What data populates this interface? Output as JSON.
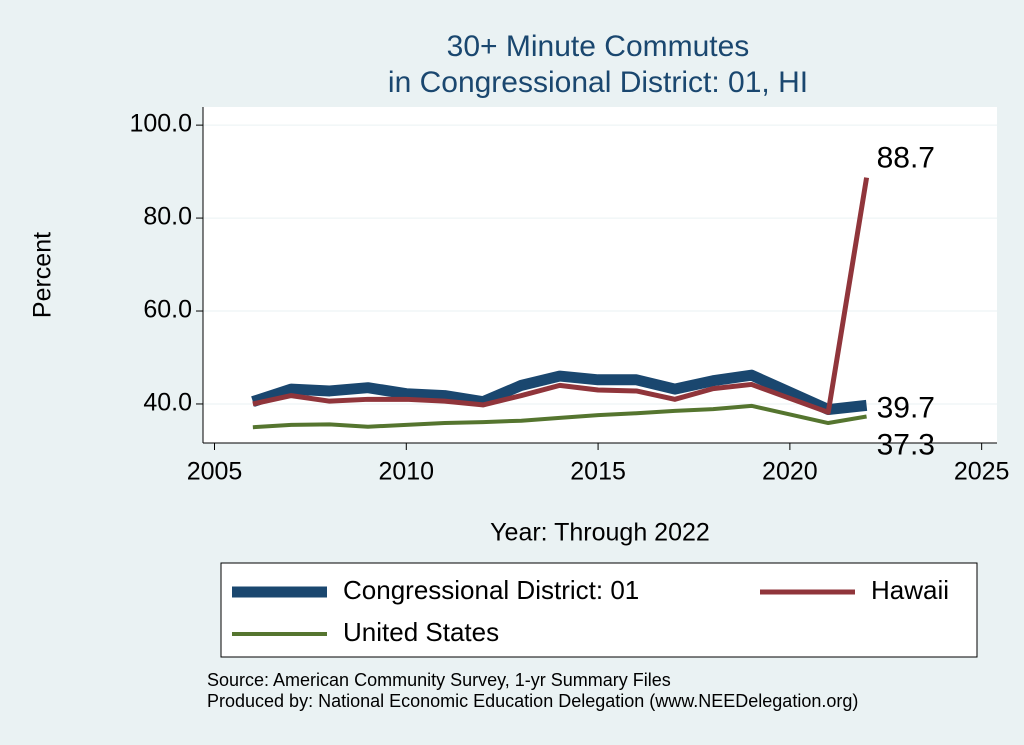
{
  "chart_data": {
    "type": "line",
    "title": [
      "30+ Minute Commutes",
      "in Congressional District:  01, HI"
    ],
    "y_label": "Percent",
    "x_label": "Year: Through 2022",
    "notes": [
      "Source: American Community Survey, 1-yr Summary Files",
      "Produced by: National Economic Education Delegation (www.NEEDelegation.org)"
    ],
    "x": [
      2006,
      2007,
      2008,
      2009,
      2010,
      2011,
      2012,
      2013,
      2014,
      2015,
      2016,
      2017,
      2018,
      2019,
      2021,
      2022
    ],
    "series": [
      {
        "name": "Congressional District:  01",
        "color": "#1a476f",
        "width": 11,
        "values": [
          40.5,
          43.2,
          42.8,
          43.5,
          42.2,
          41.8,
          40.5,
          44.0,
          46.0,
          45.2,
          45.2,
          43.2,
          45.0,
          46.2,
          38.8,
          39.7
        ]
      },
      {
        "name": "Hawaii",
        "color": "#90353b",
        "width": 5,
        "values": [
          40.0,
          41.8,
          40.6,
          41.0,
          41.0,
          40.6,
          39.8,
          41.8,
          44.0,
          43.0,
          42.8,
          41.0,
          43.3,
          44.2,
          38.2,
          88.7
        ]
      },
      {
        "name": "United States",
        "color": "#55752f",
        "width": 4,
        "values": [
          35.0,
          35.5,
          35.6,
          35.1,
          35.5,
          35.9,
          36.1,
          36.4,
          37.0,
          37.6,
          38.0,
          38.5,
          38.9,
          39.6,
          35.9,
          37.3
        ]
      }
    ],
    "xlim": [
      2004.7,
      2025.4
    ],
    "xticks": [
      2005,
      2010,
      2015,
      2020,
      2025
    ],
    "ylim": [
      31.6,
      103.9
    ],
    "yticks": [
      {
        "value": 40,
        "label": "40.0"
      },
      {
        "value": 60,
        "label": "60.0"
      },
      {
        "value": 80,
        "label": "80.0"
      },
      {
        "value": 100,
        "label": "100.0"
      }
    ],
    "grid": true
  }
}
